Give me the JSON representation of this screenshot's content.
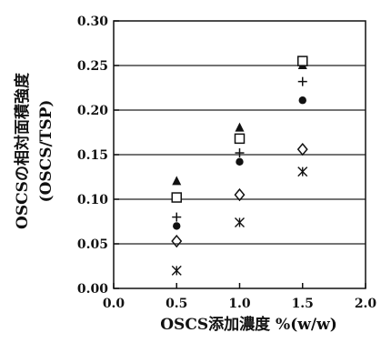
{
  "chart_data": {
    "type": "scatter",
    "xlabel": "OSCS添加濃度 %(w/w)",
    "ylabel_line1": "OSCSの相対面積強度",
    "ylabel_line2": "(OSCS/TSP)",
    "xlim": [
      0.0,
      2.0
    ],
    "ylim": [
      0.0,
      0.3
    ],
    "x_ticks": [
      "0.0",
      "0.5",
      "1.0",
      "1.5",
      "2.0"
    ],
    "y_ticks": [
      "0.00",
      "0.05",
      "0.10",
      "0.15",
      "0.20",
      "0.25",
      "0.30"
    ],
    "grid": "horizontal",
    "series": [
      {
        "marker": "triangle",
        "x": [
          0.5,
          1.0,
          1.5
        ],
        "values": [
          0.12,
          0.18,
          0.25
        ]
      },
      {
        "marker": "square",
        "x": [
          0.5,
          1.0,
          1.5
        ],
        "values": [
          0.102,
          0.168,
          0.255
        ]
      },
      {
        "marker": "plus",
        "x": [
          0.5,
          1.0,
          1.5
        ],
        "values": [
          0.08,
          0.152,
          0.232
        ]
      },
      {
        "marker": "circle",
        "x": [
          0.5,
          1.0,
          1.5
        ],
        "values": [
          0.07,
          0.142,
          0.211
        ]
      },
      {
        "marker": "diamond",
        "x": [
          0.5,
          1.0,
          1.5
        ],
        "values": [
          0.053,
          0.105,
          0.156
        ]
      },
      {
        "marker": "asterisk",
        "x": [
          0.5,
          1.0,
          1.5
        ],
        "values": [
          0.02,
          0.074,
          0.131
        ]
      }
    ],
    "colors": {
      "ink": "#111111",
      "grid": "#222222"
    }
  }
}
